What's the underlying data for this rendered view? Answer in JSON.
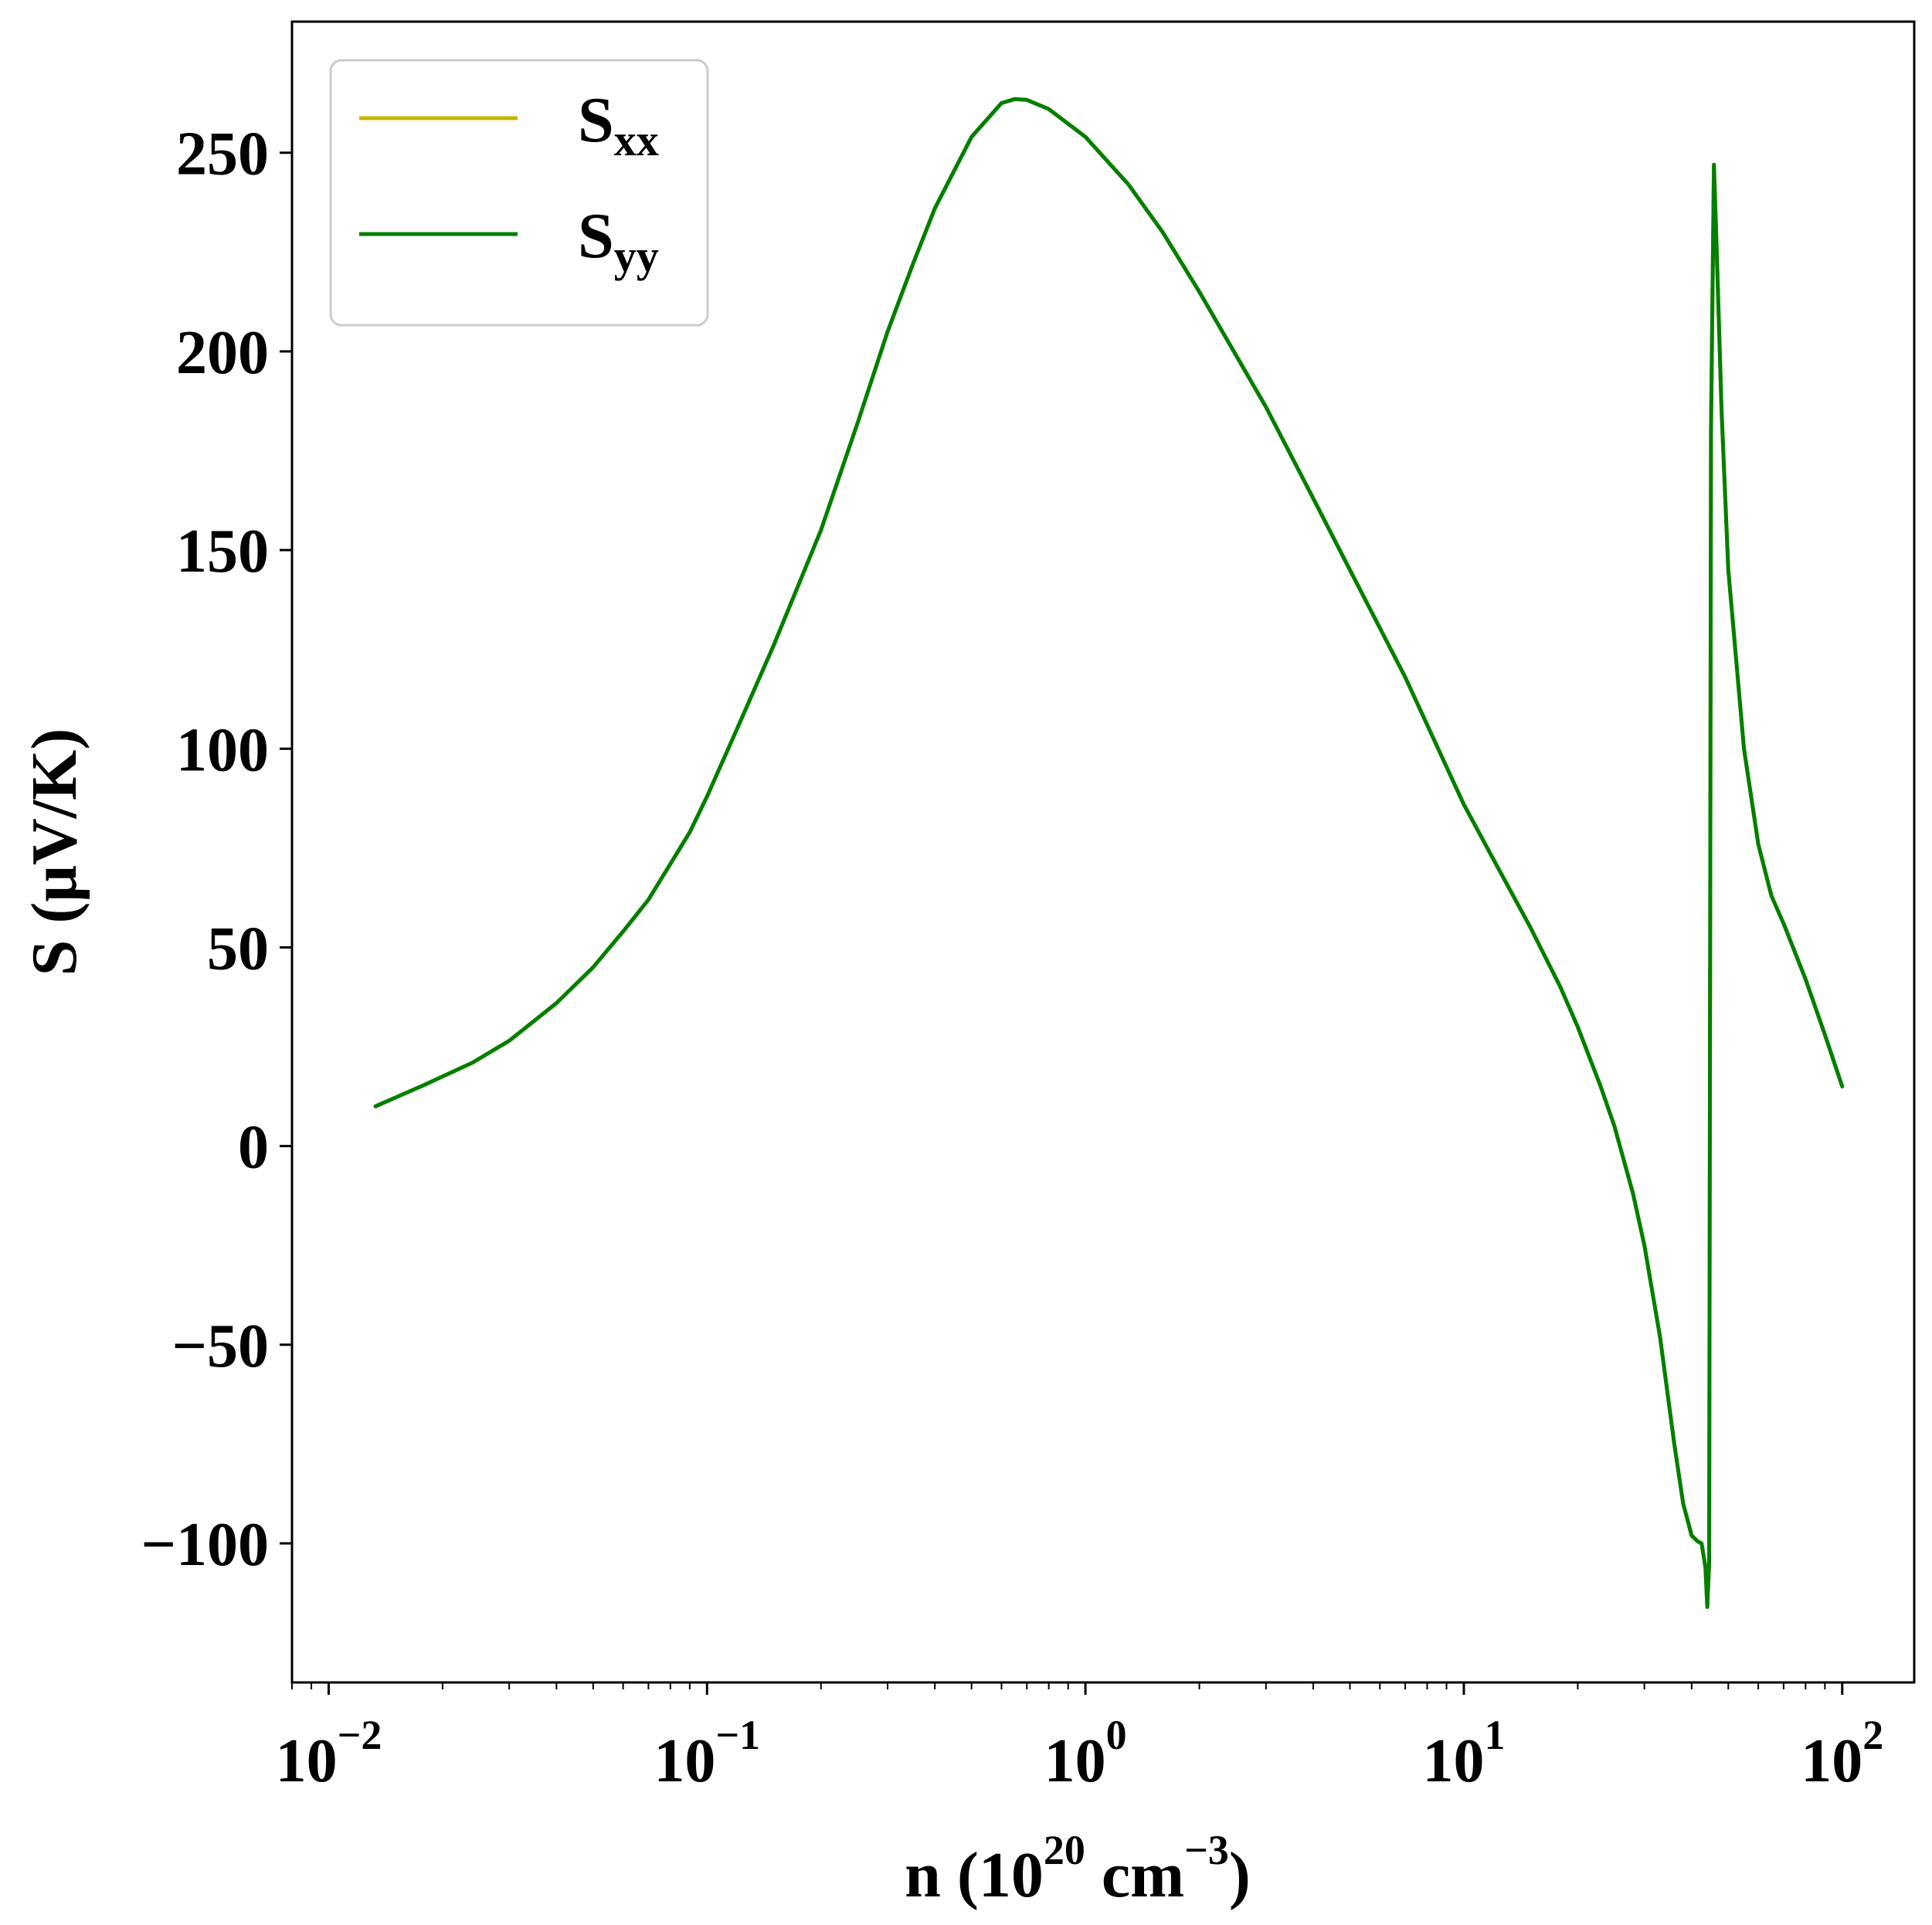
{
  "chart_data": {
    "type": "line",
    "xscale": "log",
    "xlim": [
      0.008,
      155
    ],
    "ylim": [
      -135,
      283
    ],
    "xticks": [
      {
        "value": 0.01,
        "base": "10",
        "exp": "−2"
      },
      {
        "value": 0.1,
        "base": "10",
        "exp": "−1"
      },
      {
        "value": 1,
        "base": "10",
        "exp": "0"
      },
      {
        "value": 10,
        "base": "10",
        "exp": "1"
      },
      {
        "value": 100,
        "base": "10",
        "exp": "2"
      }
    ],
    "yticks": [
      {
        "value": -100,
        "label": "−100"
      },
      {
        "value": -50,
        "label": "−50"
      },
      {
        "value": 0,
        "label": "0"
      },
      {
        "value": 50,
        "label": "50"
      },
      {
        "value": 100,
        "label": "100"
      },
      {
        "value": 150,
        "label": "150"
      },
      {
        "value": 200,
        "label": "200"
      },
      {
        "value": 250,
        "label": "250"
      }
    ],
    "xlabel": {
      "pre": "n (10",
      "sup1": "20",
      "mid": " cm",
      "sup2": "−3",
      "post": ")"
    },
    "ylabel": "S (μV/K)",
    "grid": false,
    "legend": {
      "position": "top-left",
      "entries": [
        {
          "main": "S",
          "sub": "xx",
          "color": "#c8b400"
        },
        {
          "main": "S",
          "sub": "yy",
          "color": "#007f00"
        }
      ]
    },
    "series": [
      {
        "name": "Sxx",
        "color": "#c8b400",
        "points": [
          [
            0.0133,
            10
          ],
          [
            0.018,
            15.5
          ],
          [
            0.024,
            21
          ],
          [
            0.03,
            26.5
          ],
          [
            0.04,
            36
          ],
          [
            0.05,
            45
          ],
          [
            0.06,
            54
          ],
          [
            0.07,
            62
          ],
          [
            0.08,
            71
          ],
          [
            0.09,
            79
          ],
          [
            0.1,
            88
          ],
          [
            0.12,
            105
          ],
          [
            0.15,
            126
          ],
          [
            0.2,
            155
          ],
          [
            0.25,
            182
          ],
          [
            0.3,
            205
          ],
          [
            0.35,
            222
          ],
          [
            0.4,
            236
          ],
          [
            0.5,
            254
          ],
          [
            0.6,
            262.5
          ],
          [
            0.65,
            263.5
          ],
          [
            0.7,
            263.3
          ],
          [
            0.8,
            261
          ],
          [
            1.0,
            254
          ],
          [
            1.3,
            242
          ],
          [
            1.6,
            230
          ],
          [
            2.0,
            215
          ],
          [
            3.0,
            186
          ],
          [
            4.0,
            163
          ],
          [
            5.0,
            145
          ],
          [
            7.0,
            118
          ],
          [
            10.0,
            86
          ],
          [
            12.0,
            72
          ],
          [
            15.0,
            55
          ],
          [
            18.0,
            40
          ],
          [
            20.0,
            30
          ],
          [
            23.0,
            15
          ],
          [
            25.0,
            5
          ],
          [
            28.0,
            -12
          ],
          [
            30.0,
            -25
          ],
          [
            33.0,
            -48
          ],
          [
            36.0,
            -75
          ],
          [
            38.0,
            -90
          ],
          [
            40.0,
            -98
          ],
          [
            41.5,
            -99.5
          ],
          [
            42.5,
            -100
          ],
          [
            43.5,
            -106
          ],
          [
            44.0,
            -116
          ],
          [
            44.5,
            -105
          ],
          [
            45.0,
            180
          ],
          [
            45.8,
            247
          ],
          [
            46.5,
            228
          ],
          [
            48.0,
            185
          ],
          [
            50.0,
            145
          ],
          [
            55.0,
            100
          ],
          [
            60.0,
            76
          ],
          [
            65.0,
            63
          ],
          [
            70.0,
            56
          ],
          [
            80.0,
            42
          ],
          [
            90.0,
            28
          ],
          [
            100.0,
            15
          ]
        ]
      },
      {
        "name": "Syy",
        "color": "#007f00",
        "points": [
          [
            0.0133,
            10
          ],
          [
            0.018,
            15.5
          ],
          [
            0.024,
            21
          ],
          [
            0.03,
            26.5
          ],
          [
            0.04,
            36
          ],
          [
            0.05,
            45
          ],
          [
            0.06,
            54
          ],
          [
            0.07,
            62
          ],
          [
            0.08,
            71
          ],
          [
            0.09,
            79
          ],
          [
            0.1,
            88
          ],
          [
            0.12,
            105
          ],
          [
            0.15,
            126
          ],
          [
            0.2,
            155
          ],
          [
            0.25,
            182
          ],
          [
            0.3,
            205
          ],
          [
            0.35,
            222
          ],
          [
            0.4,
            236
          ],
          [
            0.5,
            254
          ],
          [
            0.6,
            262.5
          ],
          [
            0.65,
            263.5
          ],
          [
            0.7,
            263.3
          ],
          [
            0.8,
            261
          ],
          [
            1.0,
            254
          ],
          [
            1.3,
            242
          ],
          [
            1.6,
            230
          ],
          [
            2.0,
            215
          ],
          [
            3.0,
            186
          ],
          [
            4.0,
            163
          ],
          [
            5.0,
            145
          ],
          [
            7.0,
            118
          ],
          [
            10.0,
            86
          ],
          [
            12.0,
            72
          ],
          [
            15.0,
            55
          ],
          [
            18.0,
            40
          ],
          [
            20.0,
            30
          ],
          [
            23.0,
            15
          ],
          [
            25.0,
            5
          ],
          [
            28.0,
            -12
          ],
          [
            30.0,
            -25
          ],
          [
            33.0,
            -48
          ],
          [
            36.0,
            -75
          ],
          [
            38.0,
            -90
          ],
          [
            40.0,
            -98
          ],
          [
            41.5,
            -99.5
          ],
          [
            42.5,
            -100
          ],
          [
            43.5,
            -106
          ],
          [
            44.0,
            -116
          ],
          [
            44.5,
            -105
          ],
          [
            45.0,
            180
          ],
          [
            45.8,
            247
          ],
          [
            46.5,
            228
          ],
          [
            48.0,
            185
          ],
          [
            50.0,
            145
          ],
          [
            55.0,
            100
          ],
          [
            60.0,
            76
          ],
          [
            65.0,
            63
          ],
          [
            70.0,
            56
          ],
          [
            80.0,
            42
          ],
          [
            90.0,
            28
          ],
          [
            100.0,
            15
          ]
        ]
      }
    ]
  }
}
